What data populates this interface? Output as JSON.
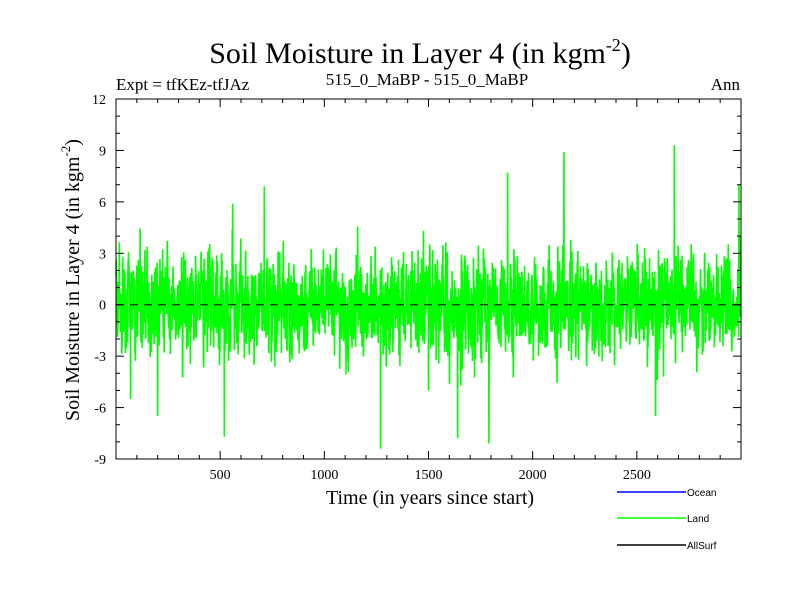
{
  "chart_data": {
    "type": "line",
    "title": "Soil Moisture in Layer 4 (in kgm",
    "title_sup": "-2",
    "title_end": ")",
    "subtitle_left": "Expt = tfKEz-tfJAz",
    "subtitle_center": "515_0_MaBP - 515_0_MaBP",
    "subtitle_right": "Ann",
    "xlabel": "Time (in years since start)",
    "ylabel": "Soil Moisture in Layer 4 (in kgm",
    "ylabel_sup": "-2",
    "ylabel_end": ")",
    "xlim": [
      0,
      3000
    ],
    "ylim": [
      -9,
      12
    ],
    "x_ticks": [
      500,
      1000,
      1500,
      2000,
      2500
    ],
    "x_tick_labels": [
      "500",
      "1000",
      "1500",
      "2000",
      "2500"
    ],
    "y_ticks": [
      -9,
      -6,
      -3,
      0,
      3,
      6,
      9,
      12
    ],
    "y_tick_labels": [
      "-9",
      "-6",
      "-3",
      "0",
      "3",
      "6",
      "9",
      "12"
    ],
    "zero_line": "dashed",
    "grid": false,
    "legend_position": "bottom-right",
    "series": [
      {
        "name": "Ocean",
        "color": "#0000ff",
        "values": []
      },
      {
        "name": "Land",
        "color": "#00ff00",
        "note_range": [
          -8.4,
          9.3
        ]
      },
      {
        "name": "AllSurf",
        "color": "#000000",
        "values": []
      }
    ],
    "land_anchor_points": [
      {
        "x": 15,
        "y": 1.5
      },
      {
        "x": 70,
        "y": -5.5
      },
      {
        "x": 200,
        "y": -6.5
      },
      {
        "x": 520,
        "y": -7.7
      },
      {
        "x": 560,
        "y": 5.9
      },
      {
        "x": 712,
        "y": 6.9
      },
      {
        "x": 1270,
        "y": -8.4
      },
      {
        "x": 1500,
        "y": -5.0
      },
      {
        "x": 1640,
        "y": -7.8
      },
      {
        "x": 1790,
        "y": -8.1
      },
      {
        "x": 1880,
        "y": 7.7
      },
      {
        "x": 2150,
        "y": 8.9
      },
      {
        "x": 2590,
        "y": -6.5
      },
      {
        "x": 2680,
        "y": 9.3
      },
      {
        "x": 2990,
        "y": 7.0
      }
    ]
  }
}
